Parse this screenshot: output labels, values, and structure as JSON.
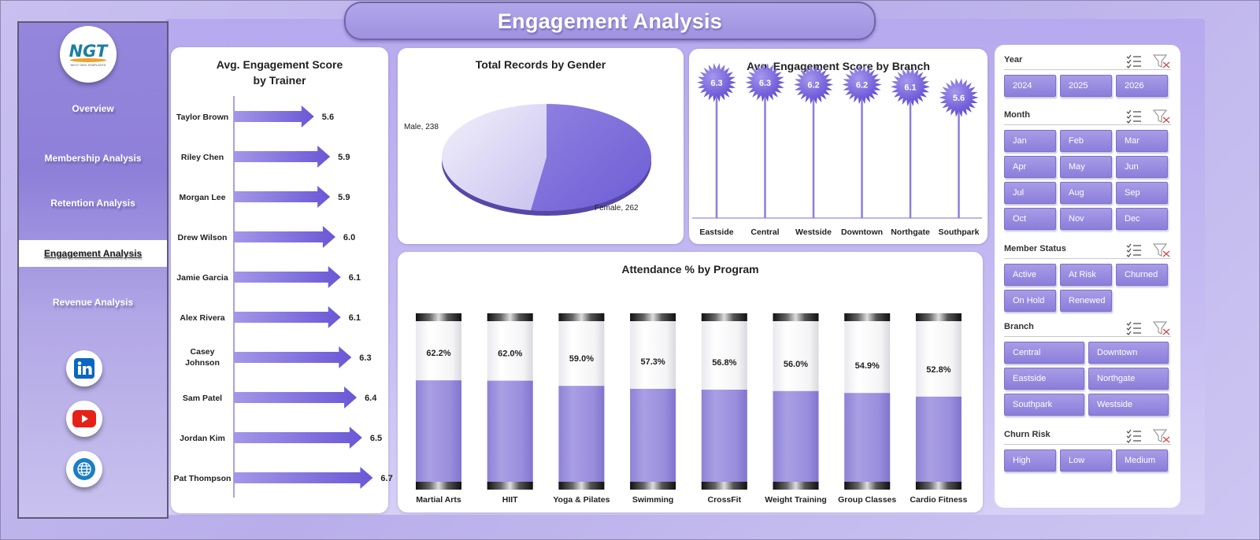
{
  "title": "Engagement Analysis",
  "logo": {
    "text": "NGT",
    "sub": "NEXT GEN TEMPLATES"
  },
  "nav": [
    {
      "label": "Overview",
      "active": false
    },
    {
      "label": "Membership Analysis",
      "active": false
    },
    {
      "label": "Retention Analysis",
      "active": false
    },
    {
      "label": "Engagement Analysis",
      "active": true
    },
    {
      "label": "Revenue Analysis",
      "active": false
    }
  ],
  "social": [
    "linkedin-icon",
    "youtube-icon",
    "globe-icon"
  ],
  "colors": {
    "accent": "#7b6bd9",
    "accent_light": "#a89ce6",
    "panel_bg": "#ffffff"
  },
  "charts": {
    "trainer": {
      "title": "Avg. Engagement Score by Trainer"
    },
    "gender": {
      "title": "Total Records by Gender"
    },
    "branch": {
      "title": "Avg. Engagement Score by Branch"
    },
    "program": {
      "title": "Attendance % by Program"
    }
  },
  "chart_data": [
    {
      "type": "bar",
      "title": "Avg. Engagement Score by Trainer",
      "categories": [
        "Taylor Brown",
        "Riley Chen",
        "Morgan Lee",
        "Drew Wilson",
        "Jamie Garcia",
        "Alex Rivera",
        "Casey Johnson",
        "Sam Patel",
        "Jordan Kim",
        "Pat Thompson"
      ],
      "values": [
        5.6,
        5.9,
        5.9,
        6.0,
        6.1,
        6.1,
        6.3,
        6.4,
        6.5,
        6.7
      ]
    },
    {
      "type": "pie",
      "title": "Total Records by Gender",
      "categories": [
        "Male",
        "Female"
      ],
      "values": [
        238,
        262
      ]
    },
    {
      "type": "bar",
      "title": "Avg. Engagement Score by Branch",
      "categories": [
        "Eastside",
        "Central",
        "Westside",
        "Downtown",
        "Northgate",
        "Southpark"
      ],
      "values": [
        6.3,
        6.3,
        6.2,
        6.2,
        6.1,
        5.6
      ]
    },
    {
      "type": "bar",
      "title": "Attendance % by Program",
      "categories": [
        "Martial Arts",
        "HIIT",
        "Yoga & Pilates",
        "Swimming",
        "CrossFit",
        "Weight Training",
        "Group Classes",
        "Cardio Fitness"
      ],
      "values": [
        62.2,
        62.0,
        59.0,
        57.3,
        56.8,
        56.0,
        54.9,
        52.8
      ]
    }
  ],
  "filters": [
    {
      "title": "Year",
      "cols": 3,
      "options": [
        "2024",
        "2025",
        "2026"
      ]
    },
    {
      "title": "Month",
      "cols": 3,
      "options": [
        "Jan",
        "Feb",
        "Mar",
        "Apr",
        "May",
        "Jun",
        "Jul",
        "Aug",
        "Sep",
        "Oct",
        "Nov",
        "Dec"
      ]
    },
    {
      "title": "Member Status",
      "cols": 3,
      "options": [
        "Active",
        "At Risk",
        "Churned",
        "On Hold",
        "Renewed"
      ]
    },
    {
      "title": "Branch",
      "cols": 2,
      "options": [
        "Central",
        "Downtown",
        "Eastside",
        "Northgate",
        "Southpark",
        "Westside"
      ]
    },
    {
      "title": "Churn Risk",
      "cols": 3,
      "options": [
        "High",
        "Low",
        "Medium"
      ]
    }
  ]
}
